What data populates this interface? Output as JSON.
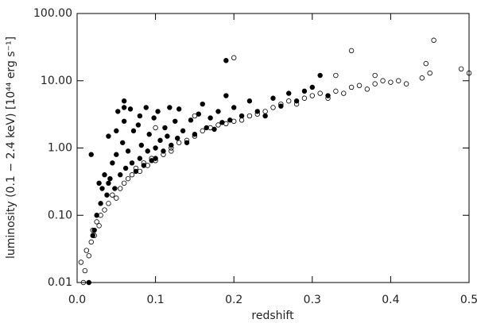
{
  "chart_data": {
    "type": "scatter",
    "x_label": "redshift",
    "y_label": "luminosity (0.1 − 2.4 keV) [10⁴⁴ erg s⁻¹]",
    "xlim": [
      0,
      0.5
    ],
    "ylim": [
      0.01,
      100
    ],
    "log_y": true,
    "grid": false,
    "xticks": [
      {
        "value": 0,
        "label": "0.0"
      },
      0.1,
      0.2,
      0.3,
      0.4,
      0.5
    ],
    "yticks": [
      {
        "value": 0.01,
        "label": "0.01"
      },
      {
        "value": 0.1,
        "label": "0.10"
      },
      {
        "value": 1,
        "label": "1.00"
      },
      {
        "value": 10,
        "label": "10.00"
      },
      {
        "value": 100,
        "label": "100.00"
      }
    ],
    "series": [
      {
        "color": "#000000",
        "marker": "filled",
        "x": [
          0.015,
          0.018,
          0.02,
          0.022,
          0.025,
          0.028,
          0.03,
          0.032,
          0.035,
          0.038,
          0.04,
          0.042,
          0.045,
          0.048,
          0.05,
          0.052,
          0.055,
          0.058,
          0.06,
          0.06,
          0.062,
          0.065,
          0.068,
          0.07,
          0.072,
          0.075,
          0.078,
          0.08,
          0.08,
          0.082,
          0.085,
          0.088,
          0.09,
          0.092,
          0.095,
          0.098,
          0.1,
          0.1,
          0.103,
          0.106,
          0.11,
          0.112,
          0.115,
          0.118,
          0.12,
          0.125,
          0.128,
          0.13,
          0.135,
          0.14,
          0.145,
          0.15,
          0.155,
          0.16,
          0.165,
          0.17,
          0.175,
          0.18,
          0.185,
          0.19,
          0.195,
          0.2,
          0.21,
          0.22,
          0.23,
          0.24,
          0.25,
          0.26,
          0.27,
          0.28,
          0.29,
          0.3,
          0.31,
          0.32,
          0.19,
          0.06,
          0.05,
          0.04
        ],
        "values": [
          0.01,
          0.8,
          0.05,
          0.06,
          0.1,
          0.3,
          0.15,
          0.25,
          0.4,
          0.2,
          1.5,
          0.35,
          0.6,
          0.25,
          0.8,
          3.5,
          0.4,
          1.2,
          2.5,
          5.0,
          0.5,
          0.9,
          3.8,
          0.6,
          1.8,
          0.45,
          2.2,
          0.7,
          3.0,
          1.1,
          0.55,
          4.0,
          0.9,
          1.6,
          0.65,
          2.8,
          1.0,
          0.7,
          3.5,
          1.3,
          0.9,
          2.0,
          1.5,
          4.0,
          1.1,
          2.5,
          1.4,
          3.8,
          1.8,
          1.2,
          2.6,
          1.6,
          3.2,
          4.5,
          2.0,
          2.8,
          1.9,
          3.5,
          2.4,
          6.0,
          2.6,
          4.0,
          3.0,
          5.0,
          3.5,
          3.0,
          5.5,
          4.2,
          6.5,
          5.0,
          7.0,
          8.0,
          12.0,
          6.0,
          20.0,
          4.0,
          1.8,
          0.3
        ]
      },
      {
        "color": "#000000",
        "marker": "open",
        "x": [
          0.005,
          0.008,
          0.01,
          0.012,
          0.015,
          0.018,
          0.02,
          0.022,
          0.025,
          0.028,
          0.03,
          0.035,
          0.04,
          0.045,
          0.05,
          0.055,
          0.06,
          0.065,
          0.07,
          0.075,
          0.08,
          0.085,
          0.09,
          0.095,
          0.1,
          0.11,
          0.12,
          0.13,
          0.14,
          0.15,
          0.16,
          0.17,
          0.18,
          0.19,
          0.2,
          0.21,
          0.22,
          0.23,
          0.24,
          0.25,
          0.26,
          0.27,
          0.28,
          0.29,
          0.3,
          0.31,
          0.32,
          0.33,
          0.34,
          0.35,
          0.36,
          0.37,
          0.38,
          0.39,
          0.4,
          0.41,
          0.42,
          0.44,
          0.445,
          0.45,
          0.455,
          0.49,
          0.5,
          0.35,
          0.2,
          0.15,
          0.1,
          0.12,
          0.33,
          0.38
        ],
        "values": [
          0.02,
          0.01,
          0.015,
          0.03,
          0.025,
          0.04,
          0.06,
          0.05,
          0.08,
          0.07,
          0.1,
          0.12,
          0.15,
          0.2,
          0.18,
          0.25,
          0.3,
          0.35,
          0.4,
          0.5,
          0.45,
          0.6,
          0.55,
          0.7,
          0.65,
          0.8,
          1.0,
          1.2,
          1.3,
          1.5,
          1.8,
          2.0,
          2.2,
          2.3,
          2.5,
          2.6,
          3.0,
          3.2,
          3.5,
          4.0,
          4.5,
          5.0,
          4.5,
          5.5,
          6.0,
          6.5,
          5.5,
          7.0,
          6.5,
          8.0,
          8.5,
          7.5,
          9.0,
          10.0,
          9.5,
          10.0,
          9.0,
          11.0,
          18.0,
          13.0,
          40.0,
          15.0,
          13.0,
          28.0,
          22.0,
          3.0,
          2.0,
          0.9,
          12.0,
          12.0
        ]
      }
    ]
  }
}
